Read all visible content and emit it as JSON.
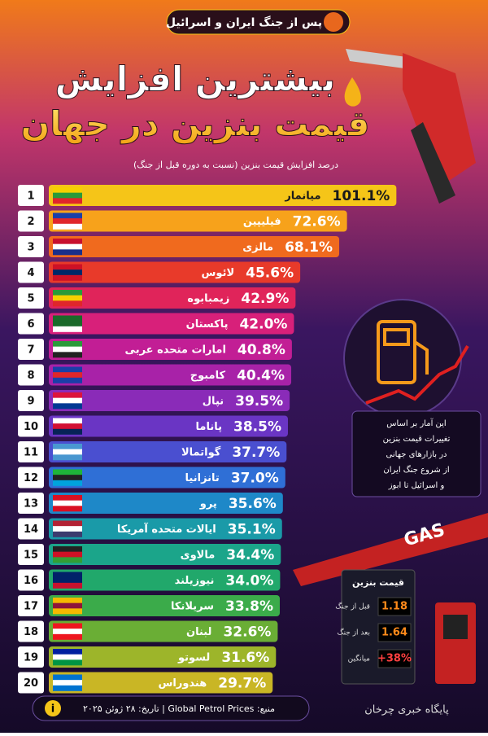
{
  "header": {
    "tag": "پس از جنگ ایران و اسرائیل",
    "title_line1": "بیشترین افزایش",
    "title_line2": "قیمت بنزین در جهان"
  },
  "chart_data": {
    "type": "hbar",
    "subtitle": "درصد افزایش قیمت بنزین (نسبت به دوره قبل از جنگ)",
    "ranks": [
      1,
      2,
      3,
      4,
      5,
      6,
      7,
      8,
      9,
      10,
      11,
      12,
      13,
      14,
      15,
      16,
      17,
      18,
      19,
      20
    ],
    "categories": [
      "میانمار",
      "فیلیپین",
      "مالزی",
      "لائوس",
      "زیمبابوه",
      "پاکستان",
      "امارات متحده عربی",
      "کامبوج",
      "نپال",
      "پاناما",
      "گواتمالا",
      "تانزانیا",
      "پرو",
      "ایالات متحده آمریکا",
      "مالاوی",
      "نیوزیلند",
      "سریلانکا",
      "لبنان",
      "لسوتو",
      "هندوراس"
    ],
    "values": [
      101.1,
      72.6,
      68.1,
      45.6,
      42.9,
      42.0,
      40.8,
      40.4,
      39.5,
      38.5,
      37.7,
      37.0,
      35.6,
      35.1,
      34.4,
      34.0,
      33.8,
      32.6,
      31.6,
      29.7
    ],
    "value_labels": [
      "101.1%",
      "72.6%",
      "68.1%",
      "45.6%",
      "42.9%",
      "42.0%",
      "40.8%",
      "40.4%",
      "39.5%",
      "38.5%",
      "37.7%",
      "37.0%",
      "35.6%",
      "35.1%",
      "34.4%",
      "34.0%",
      "33.8%",
      "32.6%",
      "31.6%",
      "29.7%"
    ],
    "colors": [
      "#f5c518",
      "#f7a21b",
      "#f06a1e",
      "#e83a2a",
      "#e0245a",
      "#d8207a",
      "#c21e95",
      "#a822a8",
      "#8a2bb8",
      "#6a35c4",
      "#4a4fd0",
      "#2f6fd6",
      "#1e88c8",
      "#1a9aa8",
      "#1ba58a",
      "#21a86b",
      "#3bab4a",
      "#6aae35",
      "#9db52a",
      "#c9b625"
    ]
  },
  "note": [
    "این آمار بر اساس",
    "تغییرات قیمت بنزین",
    "در بازارهای جهانی",
    "از شروع جنگ ایران",
    "و اسرائیل تا ابوز"
  ],
  "station": {
    "sign": "GAS",
    "board_title": "قیمت بنزین",
    "rows": [
      {
        "label": "قبل از جنگ",
        "value": "1.18"
      },
      {
        "label": "بعد از جنگ",
        "value": "1.64"
      },
      {
        "label": "میانگین",
        "value": "+38%"
      }
    ]
  },
  "footer": {
    "source": "منبع: Global Petrol Prices | تاریخ: ۲۸ ژوئن ۲۰۲۵",
    "info": "i",
    "watermark": "پایگاه خبری چرخان"
  }
}
